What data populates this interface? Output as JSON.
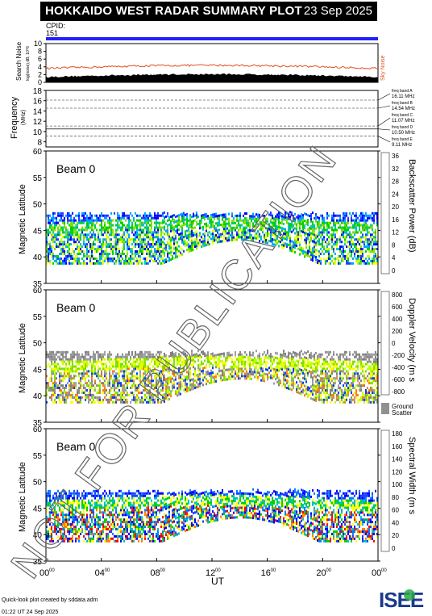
{
  "title": "HOKKAIDO WEST RADAR SUMMARY PLOT",
  "date": "23 Sep 2025",
  "cpid_label": "CPID:",
  "cpid_value": "151",
  "noise": {
    "ylabel": "Search Noise",
    "ylabel_small": "log(noise),dB, 10^6",
    "right_label": "Sky Noise",
    "ticks": [
      "0",
      "2",
      "4",
      "6",
      "8",
      "10"
    ]
  },
  "frequency": {
    "ylabel": "Frequency",
    "unit": "(MHz)",
    "ticks": [
      "8",
      "10",
      "12",
      "14",
      "16",
      "18"
    ],
    "bands": [
      {
        "label": "freq band A",
        "value": "16.11 MHz"
      },
      {
        "label": "freq band B",
        "value": "14.54 MHz"
      },
      {
        "label": "freq band C",
        "value": "11.07 MHz"
      },
      {
        "label": "freq band D",
        "value": "10.50 MHz"
      },
      {
        "label": "freq band E",
        "value": "9.11 MHz"
      }
    ]
  },
  "panels": [
    {
      "beam": "Beam  0",
      "ylabel": "Magnetic Latitude",
      "cbar_label": "Backscatter Power (dB)",
      "cbar_ticks": [
        "0",
        "4",
        "8",
        "12",
        "16",
        "20",
        "24",
        "28",
        "32",
        "36"
      ],
      "yticks": [
        "35",
        "40",
        "45",
        "50",
        "55",
        "60"
      ]
    },
    {
      "beam": "Beam  0",
      "ylabel": "Magnetic Latitude",
      "cbar_label": "Doppler Velocity (m s",
      "cbar_ticks": [
        "-800",
        "-600",
        "-400",
        "-200",
        "0",
        "200",
        "400",
        "600",
        "800"
      ],
      "yticks": [
        "35",
        "40",
        "45",
        "50",
        "55",
        "60"
      ],
      "ground_scatter": "Ground Scatter"
    },
    {
      "beam": "Beam  0",
      "ylabel": "Magnetic Latitude",
      "cbar_label": "Spectral Width (m s",
      "cbar_ticks": [
        "0",
        "20",
        "40",
        "60",
        "80",
        "100",
        "120",
        "140",
        "160",
        "180"
      ],
      "yticks": [
        "35",
        "40",
        "45",
        "50",
        "55",
        "60"
      ]
    }
  ],
  "xaxis": {
    "ticks": [
      "00",
      "04",
      "08",
      "12",
      "16",
      "20",
      "00"
    ],
    "tick_sup": "00",
    "label": "UT"
  },
  "footer": {
    "line1": "Quick-look plot created by sddata.adm",
    "line2": "01:22 UT 24 Sep 2025"
  },
  "logo": "ISEE",
  "watermark": "NOT FOR PUBLICATION",
  "colors": {
    "cpid_bar": "#2020ff",
    "noise_sky": "#e05020",
    "noise_search": "#000000",
    "ground_scatter": "#909090"
  },
  "chart_data": {
    "type": "heatmap",
    "x_range_hours": [
      0,
      24
    ],
    "lat_range": [
      35,
      60
    ],
    "panels": [
      {
        "quantity": "Backscatter Power",
        "unit": "dB",
        "range": [
          0,
          36
        ]
      },
      {
        "quantity": "Doppler Velocity",
        "unit": "m s-1",
        "range": [
          -800,
          800
        ]
      },
      {
        "quantity": "Spectral Width",
        "unit": "m s-1",
        "range": [
          0,
          180
        ]
      }
    ]
  }
}
